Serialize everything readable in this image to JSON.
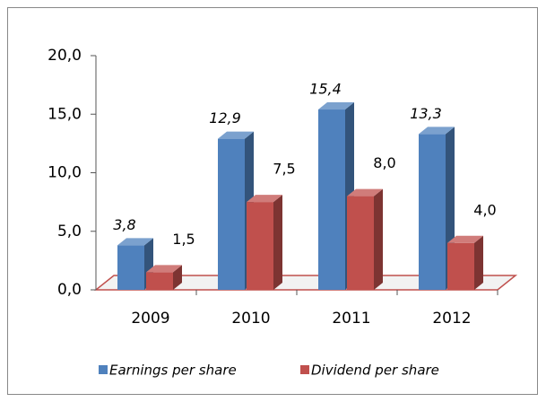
{
  "chart_data": {
    "type": "bar3d",
    "categories": [
      "2009",
      "2010",
      "2011",
      "2012"
    ],
    "series": [
      {
        "name": "Earnings per share",
        "color": "#4f81bd",
        "values": [
          3.8,
          12.9,
          15.4,
          13.3
        ],
        "value_labels": [
          "3,8",
          "12,9",
          "15,4",
          "13,3"
        ]
      },
      {
        "name": "Dividend per share",
        "color": "#c0504d",
        "values": [
          1.5,
          7.5,
          8.0,
          4.0
        ],
        "value_labels": [
          "1,5",
          "7,5",
          "8,0",
          "4,0"
        ]
      }
    ],
    "ylim": [
      0,
      20
    ],
    "yticks": [
      {
        "value": 0,
        "label": "0,0"
      },
      {
        "value": 5,
        "label": "5,0"
      },
      {
        "value": 10,
        "label": "10,0"
      },
      {
        "value": 15,
        "label": "15,0"
      },
      {
        "value": 20,
        "label": "20,0"
      }
    ],
    "legend": "bottom"
  }
}
